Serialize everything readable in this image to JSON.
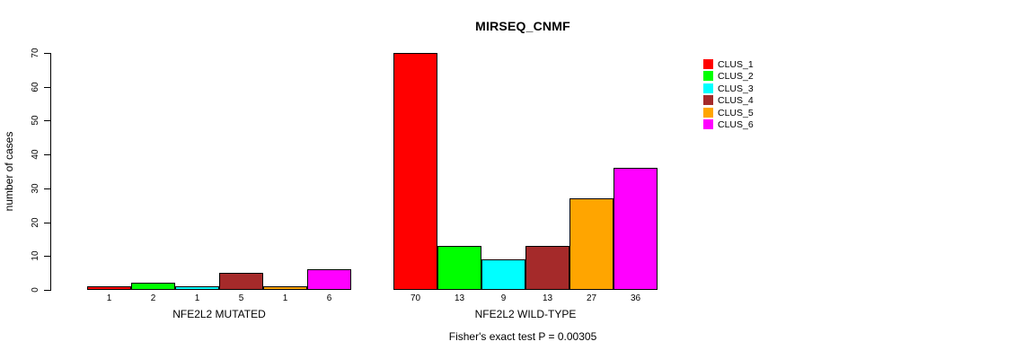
{
  "title": "MIRSEQ_CNMF",
  "annotation": "Fisher's exact test P = 0.00305",
  "y_axis": {
    "label": "number of cases",
    "ticks": [
      "0",
      "10",
      "20",
      "30",
      "40",
      "50",
      "60",
      "70"
    ]
  },
  "legend": {
    "items": [
      {
        "label": "CLUS_1",
        "color": "#FF0000"
      },
      {
        "label": "CLUS_2",
        "color": "#00FF00"
      },
      {
        "label": "CLUS_3",
        "color": "#00FFFF"
      },
      {
        "label": "CLUS_4",
        "color": "#A52A2A"
      },
      {
        "label": "CLUS_5",
        "color": "#FFA500"
      },
      {
        "label": "CLUS_6",
        "color": "#FF00FF"
      }
    ]
  },
  "chart_data": {
    "type": "bar",
    "title": "MIRSEQ_CNMF",
    "xlabel": "",
    "ylabel": "number of cases",
    "ylim": [
      0,
      70
    ],
    "yticks": [
      0,
      10,
      20,
      30,
      40,
      50,
      60,
      70
    ],
    "grid": false,
    "legend_position": "right",
    "bar_value_labels_shown": true,
    "series_names": [
      "CLUS_1",
      "CLUS_2",
      "CLUS_3",
      "CLUS_4",
      "CLUS_5",
      "CLUS_6"
    ],
    "series_colors": [
      "#FF0000",
      "#00FF00",
      "#00FFFF",
      "#A52A2A",
      "#FFA500",
      "#FF00FF"
    ],
    "groups": [
      {
        "label": "NFE2L2 MUTATED",
        "values": [
          1,
          2,
          1,
          5,
          1,
          6
        ]
      },
      {
        "label": "NFE2L2 WILD-TYPE",
        "values": [
          70,
          13,
          9,
          13,
          27,
          36
        ]
      }
    ],
    "annotation": "Fisher's exact test P = 0.00305"
  }
}
